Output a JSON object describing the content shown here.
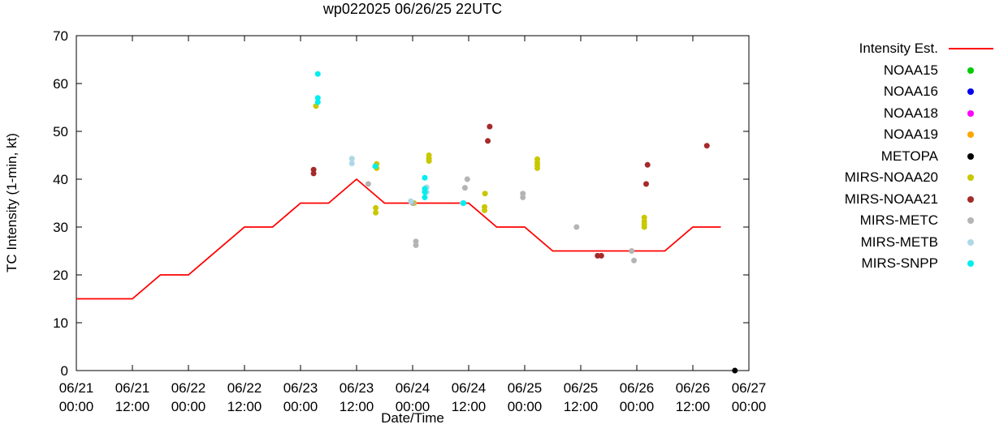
{
  "chart_data": {
    "type": "scatter",
    "title": "wp022025 06/26/25 22UTC",
    "xlabel": "Date/Time",
    "ylabel": "TC Intensity (1-min, kt)",
    "ylim": [
      0,
      70
    ],
    "y_ticks": [
      0,
      10,
      20,
      30,
      40,
      50,
      60,
      70
    ],
    "x_range_hours": [
      0,
      144
    ],
    "x_tick_interval_hours": 12,
    "grid": "off",
    "legend_position": "outside-right-top",
    "x_ticks": [
      {
        "hour": 0,
        "line1": "06/21",
        "line2": "00:00"
      },
      {
        "hour": 12,
        "line1": "06/21",
        "line2": "12:00"
      },
      {
        "hour": 24,
        "line1": "06/22",
        "line2": "00:00"
      },
      {
        "hour": 36,
        "line1": "06/22",
        "line2": "12:00"
      },
      {
        "hour": 48,
        "line1": "06/23",
        "line2": "00:00"
      },
      {
        "hour": 60,
        "line1": "06/23",
        "line2": "12:00"
      },
      {
        "hour": 72,
        "line1": "06/24",
        "line2": "00:00"
      },
      {
        "hour": 84,
        "line1": "06/24",
        "line2": "12:00"
      },
      {
        "hour": 96,
        "line1": "06/25",
        "line2": "00:00"
      },
      {
        "hour": 108,
        "line1": "06/25",
        "line2": "12:00"
      },
      {
        "hour": 120,
        "line1": "06/26",
        "line2": "00:00"
      },
      {
        "hour": 132,
        "line1": "06/26",
        "line2": "12:00"
      },
      {
        "hour": 144,
        "line1": "06/27",
        "line2": "00:00"
      }
    ],
    "intensity_line": {
      "name": "Intensity Est.",
      "color": "#ff0000",
      "points": [
        [
          0,
          15
        ],
        [
          12,
          15
        ],
        [
          18,
          20
        ],
        [
          24,
          20
        ],
        [
          36,
          30
        ],
        [
          42,
          30
        ],
        [
          48,
          35
        ],
        [
          54,
          35
        ],
        [
          60,
          40
        ],
        [
          66,
          35
        ],
        [
          84,
          35
        ],
        [
          90,
          30
        ],
        [
          96,
          30
        ],
        [
          102,
          25
        ],
        [
          126,
          25
        ],
        [
          132,
          30
        ],
        [
          138,
          30
        ]
      ]
    },
    "series": [
      {
        "name": "NOAA15",
        "color": "#00cd00",
        "points": []
      },
      {
        "name": "NOAA16",
        "color": "#0000ee",
        "points": []
      },
      {
        "name": "NOAA18",
        "color": "#ff00ff",
        "points": []
      },
      {
        "name": "NOAA19",
        "color": "#ffa500",
        "points": []
      },
      {
        "name": "METOPA",
        "color": "#000000",
        "points": [
          [
            141,
            0
          ]
        ]
      },
      {
        "name": "MIRS-NOAA20",
        "color": "#c8c800",
        "points": [
          [
            51.3,
            55.3
          ],
          [
            64.3,
            43.2
          ],
          [
            64.3,
            42.3
          ],
          [
            64.1,
            34
          ],
          [
            64.1,
            33
          ],
          [
            72.3,
            35
          ],
          [
            75.5,
            45
          ],
          [
            75.5,
            44.3
          ],
          [
            75.5,
            43.8
          ],
          [
            87.5,
            37
          ],
          [
            87.4,
            34.2
          ],
          [
            87.4,
            33.5
          ],
          [
            98.7,
            44.2
          ],
          [
            98.7,
            43.5
          ],
          [
            98.7,
            42.9
          ],
          [
            98.7,
            42.3
          ],
          [
            121.6,
            32
          ],
          [
            121.6,
            31.2
          ],
          [
            121.6,
            30.6
          ],
          [
            121.6,
            30
          ]
        ]
      },
      {
        "name": "MIRS-NOAA21",
        "color": "#a52a2a",
        "points": [
          [
            50.8,
            42
          ],
          [
            50.8,
            41.2
          ],
          [
            88.5,
            51
          ],
          [
            88.1,
            48
          ],
          [
            111.6,
            24
          ],
          [
            112.4,
            24
          ],
          [
            122.3,
            43
          ],
          [
            122.0,
            39
          ],
          [
            135,
            47
          ]
        ]
      },
      {
        "name": "MIRS-METC",
        "color": "#b4b4b4",
        "points": [
          [
            62.5,
            39
          ],
          [
            72.0,
            35
          ],
          [
            72.7,
            27
          ],
          [
            72.7,
            26.2
          ],
          [
            83.7,
            40
          ],
          [
            83.2,
            38.2
          ],
          [
            95.6,
            37
          ],
          [
            95.6,
            36.2
          ],
          [
            107.1,
            30
          ],
          [
            118.9,
            25
          ],
          [
            119.4,
            23
          ]
        ]
      },
      {
        "name": "MIRS-METB",
        "color": "#add8e6",
        "points": [
          [
            59.0,
            44.3
          ],
          [
            59.0,
            43.3
          ],
          [
            71.6,
            35.4
          ],
          [
            75.0,
            38.3
          ],
          [
            75.0,
            37.3
          ],
          [
            82.7,
            35
          ]
        ]
      },
      {
        "name": "MIRS-SNPP",
        "color": "#00eeee",
        "points": [
          [
            51.7,
            62
          ],
          [
            51.7,
            57
          ],
          [
            51.7,
            56.1
          ],
          [
            64.0,
            42.7
          ],
          [
            74.6,
            40.3
          ],
          [
            74.6,
            38
          ],
          [
            74.6,
            37.3
          ],
          [
            74.6,
            36.2
          ],
          [
            82.9,
            35
          ]
        ]
      }
    ]
  }
}
